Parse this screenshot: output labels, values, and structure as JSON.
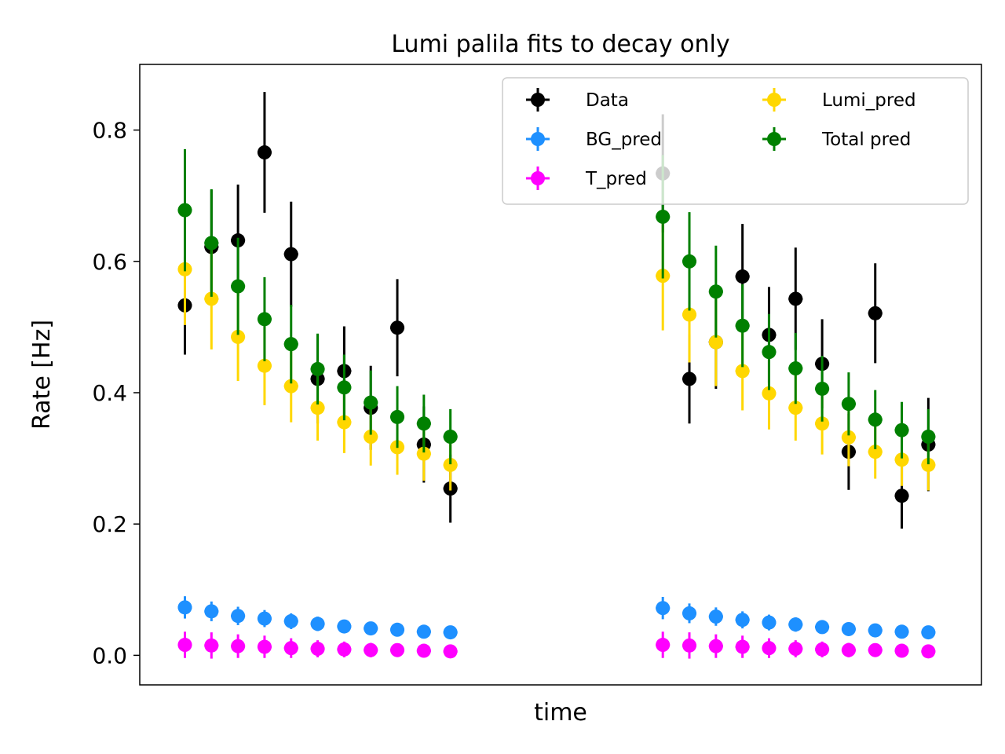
{
  "chart_data": {
    "type": "scatter",
    "title": "Lumi palila fits to decay only",
    "xlabel": "time",
    "ylabel": "Rate [Hz]",
    "ylim": [
      -0.045,
      0.9
    ],
    "x_ticks_shown": false,
    "y_ticks": [
      "0.0",
      "0.2",
      "0.4",
      "0.6",
      "0.8"
    ],
    "y_tick_values": [
      0.0,
      0.2,
      0.4,
      0.6,
      0.8
    ],
    "grid": false,
    "legend_placement": "top-right",
    "legend_columns": 2,
    "x": [
      1,
      2,
      3,
      4,
      5,
      6,
      7,
      8,
      9,
      10,
      11,
      19,
      20,
      21,
      22,
      23,
      24,
      25,
      26,
      27,
      28,
      29
    ],
    "xlim": [
      -0.7,
      31.0
    ],
    "series": [
      {
        "name": "Data",
        "color": "#000000",
        "y": [
          0.533,
          0.622,
          0.632,
          0.766,
          0.611,
          0.421,
          0.433,
          0.377,
          0.499,
          0.321,
          0.254,
          0.734,
          0.421,
          0.477,
          0.577,
          0.488,
          0.543,
          0.444,
          0.31,
          0.521,
          0.243,
          0.321
        ],
        "err": [
          0.075,
          0.087,
          0.085,
          0.092,
          0.08,
          0.068,
          0.068,
          0.064,
          0.074,
          0.058,
          0.052,
          0.09,
          0.068,
          0.071,
          0.08,
          0.073,
          0.078,
          0.068,
          0.058,
          0.076,
          0.05,
          0.071
        ]
      },
      {
        "name": "BG_pred",
        "color": "#1e90ff",
        "y": [
          0.073,
          0.067,
          0.06,
          0.056,
          0.052,
          0.048,
          0.044,
          0.041,
          0.039,
          0.036,
          0.035,
          0.072,
          0.064,
          0.059,
          0.054,
          0.05,
          0.047,
          0.043,
          0.04,
          0.038,
          0.036,
          0.035
        ],
        "err": [
          0.017,
          0.015,
          0.014,
          0.013,
          0.012,
          0.011,
          0.01,
          0.009,
          0.009,
          0.008,
          0.008,
          0.017,
          0.015,
          0.014,
          0.013,
          0.012,
          0.011,
          0.01,
          0.009,
          0.009,
          0.008,
          0.008
        ]
      },
      {
        "name": "T_pred",
        "color": "#ff00ff",
        "y": [
          0.016,
          0.015,
          0.014,
          0.013,
          0.011,
          0.01,
          0.009,
          0.008,
          0.008,
          0.007,
          0.006,
          0.016,
          0.015,
          0.014,
          0.013,
          0.011,
          0.01,
          0.009,
          0.008,
          0.008,
          0.007,
          0.006
        ],
        "err": [
          0.02,
          0.02,
          0.018,
          0.017,
          0.015,
          0.013,
          0.012,
          0.011,
          0.01,
          0.009,
          0.008,
          0.02,
          0.02,
          0.018,
          0.017,
          0.015,
          0.013,
          0.012,
          0.011,
          0.01,
          0.009,
          0.008
        ]
      },
      {
        "name": "Lumi_pred",
        "color": "#ffd700",
        "y": [
          0.588,
          0.543,
          0.485,
          0.441,
          0.41,
          0.377,
          0.355,
          0.333,
          0.317,
          0.307,
          0.29,
          0.578,
          0.519,
          0.477,
          0.433,
          0.399,
          0.377,
          0.353,
          0.332,
          0.31,
          0.298,
          0.29
        ],
        "err": [
          0.085,
          0.077,
          0.067,
          0.06,
          0.055,
          0.05,
          0.047,
          0.044,
          0.042,
          0.041,
          0.039,
          0.083,
          0.073,
          0.067,
          0.06,
          0.055,
          0.05,
          0.047,
          0.044,
          0.041,
          0.04,
          0.039
        ]
      },
      {
        "name": "Total pred",
        "color": "#008000",
        "y": [
          0.678,
          0.628,
          0.562,
          0.512,
          0.474,
          0.436,
          0.408,
          0.385,
          0.363,
          0.353,
          0.333,
          0.668,
          0.6,
          0.554,
          0.502,
          0.462,
          0.437,
          0.406,
          0.383,
          0.359,
          0.343,
          0.333
        ],
        "err": [
          0.093,
          0.082,
          0.074,
          0.064,
          0.06,
          0.054,
          0.05,
          0.049,
          0.047,
          0.044,
          0.042,
          0.094,
          0.075,
          0.07,
          0.063,
          0.058,
          0.054,
          0.05,
          0.048,
          0.045,
          0.043,
          0.042
        ]
      }
    ]
  }
}
